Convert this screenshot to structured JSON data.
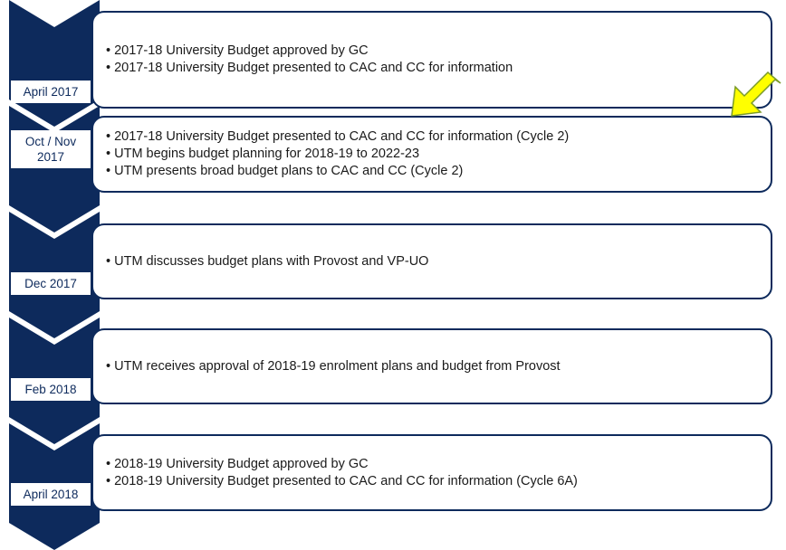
{
  "steps": [
    {
      "label": "April 2017",
      "bullets": [
        "2017-18 University Budget approved by GC",
        "2017-18 University Budget presented to CAC and CC for information"
      ]
    },
    {
      "label": "Oct / Nov 2017",
      "bullets": [
        "2017-18 University Budget presented to CAC and CC for information (Cycle 2)",
        "UTM begins budget planning for 2018-19 to 2022-23",
        "UTM presents broad budget plans to CAC and CC (Cycle 2)"
      ]
    },
    {
      "label": "Dec 2017",
      "bullets": [
        "UTM discusses budget plans with Provost and VP-UO"
      ]
    },
    {
      "label": "Feb 2018",
      "bullets": [
        "UTM receives approval of 2018-19 enrolment plans and budget from Provost"
      ]
    },
    {
      "label": "April 2018",
      "bullets": [
        "2018-19 University Budget approved by GC",
        "2018-19 University Budget presented to CAC and CC for information (Cycle 6A)"
      ]
    }
  ]
}
